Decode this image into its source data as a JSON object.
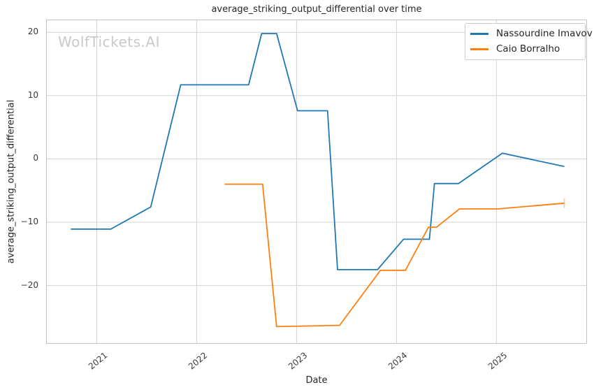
{
  "watermark": "WolfTickets.AI",
  "chart_data": {
    "type": "line",
    "title": "average_striking_output_differential over time",
    "xlabel": "Date",
    "ylabel": "average_striking_output_differential",
    "x_unit": "decimal_year",
    "grid": true,
    "legend_position": "upper right",
    "x_axis": {
      "min": 2020.5,
      "max": 2025.9,
      "ticks": [
        2021,
        2022,
        2023,
        2024,
        2025
      ],
      "tick_labels": [
        "2021",
        "2022",
        "2023",
        "2024",
        "2025"
      ]
    },
    "y_axis": {
      "min": -29.1,
      "max": 21.9,
      "ticks": [
        20,
        10,
        0,
        -10,
        -20
      ],
      "tick_labels": [
        "20",
        "10",
        "0",
        "−10",
        "−20"
      ]
    },
    "colors": {
      "grid": "#d3d3d3",
      "spine": "#c2c2c2",
      "accent_blue": "#1f77b4",
      "accent_orange": "#ff7f0e"
    },
    "series": [
      {
        "name": "Nassourdine Imavov",
        "color": "#1f77b4",
        "end_tick": false,
        "points": [
          [
            2020.74,
            -11.1
          ],
          [
            2021.14,
            -11.1
          ],
          [
            2021.54,
            -7.6
          ],
          [
            2021.84,
            11.7
          ],
          [
            2022.52,
            11.7
          ],
          [
            2022.65,
            19.8
          ],
          [
            2022.8,
            19.8
          ],
          [
            2023.01,
            7.6
          ],
          [
            2023.31,
            7.6
          ],
          [
            2023.41,
            -17.5
          ],
          [
            2023.81,
            -17.5
          ],
          [
            2024.07,
            -12.7
          ],
          [
            2024.33,
            -12.7
          ],
          [
            2024.38,
            -3.9
          ],
          [
            2024.62,
            -3.9
          ],
          [
            2025.06,
            0.9
          ],
          [
            2025.68,
            -1.2
          ]
        ]
      },
      {
        "name": "Caio Borralho",
        "color": "#ff7f0e",
        "end_tick": true,
        "points": [
          [
            2022.28,
            -4.0
          ],
          [
            2022.66,
            -4.0
          ],
          [
            2022.8,
            -26.5
          ],
          [
            2023.43,
            -26.3
          ],
          [
            2023.84,
            -17.6
          ],
          [
            2024.09,
            -17.6
          ],
          [
            2024.32,
            -10.8
          ],
          [
            2024.4,
            -10.8
          ],
          [
            2024.63,
            -7.9
          ],
          [
            2025.01,
            -7.9
          ],
          [
            2025.68,
            -7.0
          ]
        ]
      }
    ]
  }
}
